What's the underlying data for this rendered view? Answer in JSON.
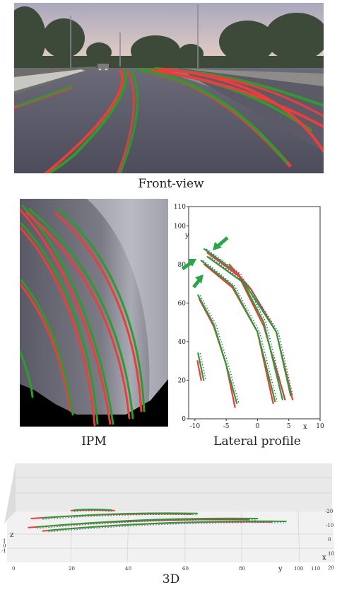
{
  "captions": {
    "front_view": "Front-view",
    "ipm": "IPM",
    "lateral_profile": "Lateral profile",
    "three_d": "3D"
  },
  "colors": {
    "prediction": "#ee3b3b",
    "ground_truth": "#2f9a2f",
    "arrow": "#29a84a",
    "dotted": "#3b4fb0"
  },
  "chart_data": [
    {
      "type": "line",
      "title": "",
      "xlabel": "x",
      "ylabel": "y",
      "xlim": [
        -11,
        10
      ],
      "ylim": [
        0,
        110
      ],
      "xticks": [
        "-10",
        "-5",
        "0",
        "5",
        "10"
      ],
      "yticks": [
        "0",
        "20",
        "40",
        "60",
        "80",
        "100",
        "110"
      ],
      "grid": false,
      "series": [
        {
          "color": "#ee3b3b",
          "x": [
            -9.6,
            -9.0
          ],
          "y": [
            30,
            20
          ]
        },
        {
          "color": "#2f9a2f",
          "x": [
            -9.5,
            -8.6
          ],
          "y": [
            34,
            20
          ]
        },
        {
          "color": "#ee3b3b",
          "x": [
            -9.3,
            -7.0,
            -5.0,
            -3.6
          ],
          "y": [
            62,
            48,
            28,
            6
          ]
        },
        {
          "color": "#2f9a2f",
          "x": [
            -9.5,
            -7.0,
            -5.0,
            -3.3
          ],
          "y": [
            64,
            49,
            28,
            8
          ]
        },
        {
          "color": "#ee3b3b",
          "x": [
            -8.5,
            -4.0,
            0.0,
            2.5
          ],
          "y": [
            80,
            68,
            45,
            8
          ]
        },
        {
          "color": "#2f9a2f",
          "x": [
            -9.0,
            -4.0,
            0.0,
            2.8
          ],
          "y": [
            82,
            69,
            45,
            9
          ]
        },
        {
          "color": "#ee3b3b",
          "x": [
            -8.0,
            -3.0,
            1.0,
            4.4
          ],
          "y": [
            86,
            74,
            48,
            10
          ]
        },
        {
          "color": "#2f9a2f",
          "x": [
            -8.5,
            -3.0,
            1.0,
            4.0
          ],
          "y": [
            88,
            75,
            50,
            10
          ]
        },
        {
          "color": "#ee3b3b",
          "x": [
            -4.5,
            -1.0,
            3.0,
            5.6
          ],
          "y": [
            80,
            67,
            45,
            10
          ]
        },
        {
          "color": "#2f9a2f",
          "x": [
            -8.0,
            -2.0,
            3.0,
            5.3
          ],
          "y": [
            84,
            70,
            45,
            12
          ]
        }
      ]
    },
    {
      "type": "line",
      "title": "",
      "xlabel": "y",
      "ylabel": "z",
      "zlabel": "x",
      "xticks": [
        "0",
        "20",
        "40",
        "60",
        "80",
        "100",
        "110"
      ],
      "zticks": [
        "-20",
        "-10",
        "0",
        "10",
        "20"
      ],
      "ticks_left": [
        "1",
        "0",
        "-1"
      ],
      "series": [
        {
          "color": "#ee3b3b",
          "y": [
            20,
            35
          ],
          "x": [
            12,
            12
          ]
        },
        {
          "color": "#2f9a2f",
          "y": [
            21,
            34
          ],
          "x": [
            12.5,
            12.5
          ]
        },
        {
          "color": "#ee3b3b",
          "y": [
            6,
            62
          ],
          "x": [
            5,
            9
          ]
        },
        {
          "color": "#2f9a2f",
          "y": [
            10,
            64
          ],
          "x": [
            5.5,
            9.5
          ]
        },
        {
          "color": "#ee3b3b",
          "y": [
            5,
            82
          ],
          "x": [
            -3,
            4
          ]
        },
        {
          "color": "#2f9a2f",
          "y": [
            8,
            85
          ],
          "x": [
            -2.5,
            5
          ]
        },
        {
          "color": "#ee3b3b",
          "y": [
            10,
            90
          ],
          "x": [
            -6,
            2
          ]
        },
        {
          "color": "#2f9a2f",
          "y": [
            12,
            95
          ],
          "x": [
            -5.5,
            2.5
          ]
        }
      ]
    }
  ]
}
